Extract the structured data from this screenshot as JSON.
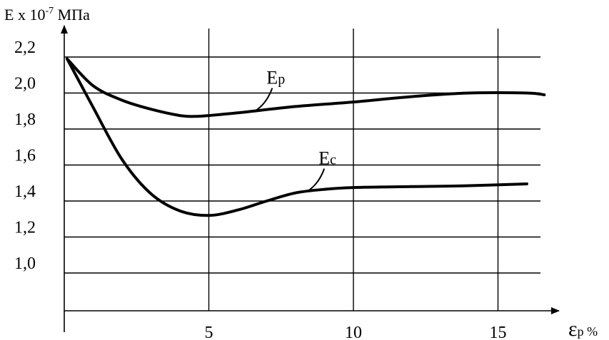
{
  "chart_data": {
    "type": "line",
    "ylabel": {
      "prefix": "E x 10",
      "exponent": "-7",
      "unit": " МПа"
    },
    "xlabel": {
      "symbol": "ε",
      "subscript": "p",
      "unit": " %"
    },
    "xlim": [
      0,
      17
    ],
    "ylim": [
      0.8,
      2.3
    ],
    "x_ticks": [
      {
        "value": 5,
        "label": "5"
      },
      {
        "value": 10,
        "label": "10"
      },
      {
        "value": 15,
        "label": "15"
      }
    ],
    "y_ticks": [
      {
        "value": 1.0,
        "label": "1,0"
      },
      {
        "value": 1.2,
        "label": "1,2"
      },
      {
        "value": 1.4,
        "label": "1,4"
      },
      {
        "value": 1.6,
        "label": "1,6"
      },
      {
        "value": 1.8,
        "label": "1,8"
      },
      {
        "value": 2.0,
        "label": "2,0"
      },
      {
        "value": 2.2,
        "label": "2,2"
      }
    ],
    "grid": true,
    "series": [
      {
        "name_main": "E",
        "name_sub": "p",
        "label_at": 6.6,
        "x": [
          0.1,
          1.0,
          2.0,
          3.0,
          4.0,
          4.5,
          5.0,
          6.0,
          8.0,
          10.0,
          12.0,
          14.0,
          16.0,
          16.6
        ],
        "values": [
          2.19,
          2.04,
          1.96,
          1.91,
          1.875,
          1.87,
          1.875,
          1.89,
          1.925,
          1.95,
          1.98,
          2.0,
          2.0,
          1.99
        ]
      },
      {
        "name_main": "E",
        "name_sub": "c",
        "label_at": 8.4,
        "x": [
          0.1,
          1.0,
          2.0,
          3.0,
          4.0,
          5.0,
          6.0,
          7.0,
          8.0,
          9.0,
          10.0,
          12.0,
          14.0,
          16.0
        ],
        "values": [
          2.19,
          1.92,
          1.63,
          1.44,
          1.345,
          1.32,
          1.35,
          1.4,
          1.445,
          1.465,
          1.475,
          1.48,
          1.485,
          1.495
        ]
      }
    ]
  }
}
